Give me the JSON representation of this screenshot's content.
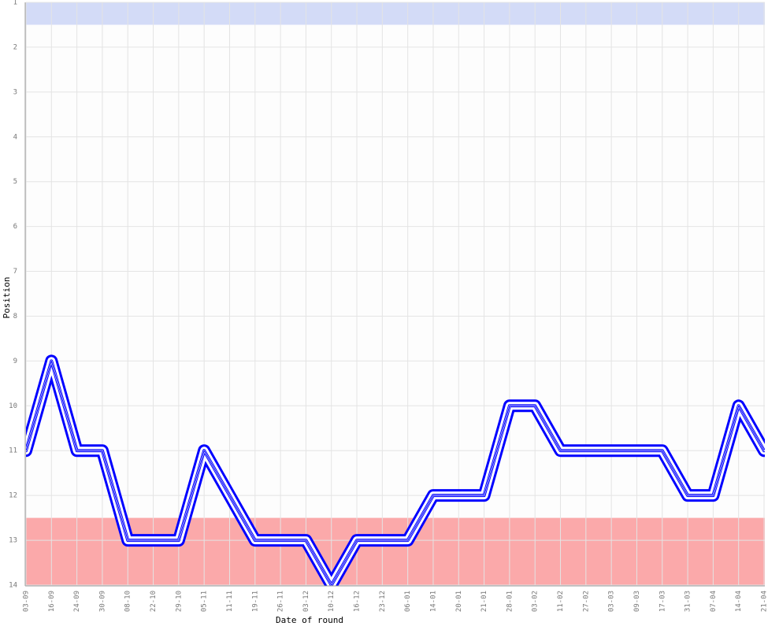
{
  "chart_data": {
    "type": "line",
    "x_label": "Date of round",
    "y_label": "Position",
    "categories": [
      "03-09",
      "16-09",
      "24-09",
      "30-09",
      "08-10",
      "22-10",
      "29-10",
      "05-11",
      "11-11",
      "19-11",
      "26-11",
      "03-12",
      "10-12",
      "16-12",
      "23-12",
      "06-01",
      "14-01",
      "20-01",
      "21-01",
      "28-01",
      "03-02",
      "11-02",
      "27-02",
      "03-03",
      "09-03",
      "17-03",
      "31-03",
      "07-04",
      "14-04",
      "21-04"
    ],
    "series": [
      {
        "color": "#0000ff",
        "values": [
          11,
          9,
          11,
          11,
          13,
          13,
          13,
          11,
          12,
          13,
          13,
          13,
          14,
          13,
          13,
          13,
          12,
          12,
          12,
          10,
          10,
          11,
          11,
          11,
          11,
          11,
          12,
          12,
          10,
          11
        ]
      }
    ],
    "ylim": [
      1,
      14
    ],
    "yticks": [
      1,
      2,
      3,
      4,
      5,
      6,
      7,
      8,
      9,
      10,
      11,
      12,
      13,
      14
    ],
    "y_inverted": true,
    "grid": true,
    "bands": [
      {
        "from": 1,
        "to": 1.5,
        "color": "#d3dbf7"
      },
      {
        "from": 12.5,
        "to": 14,
        "color": "#fba9aa"
      }
    ]
  }
}
